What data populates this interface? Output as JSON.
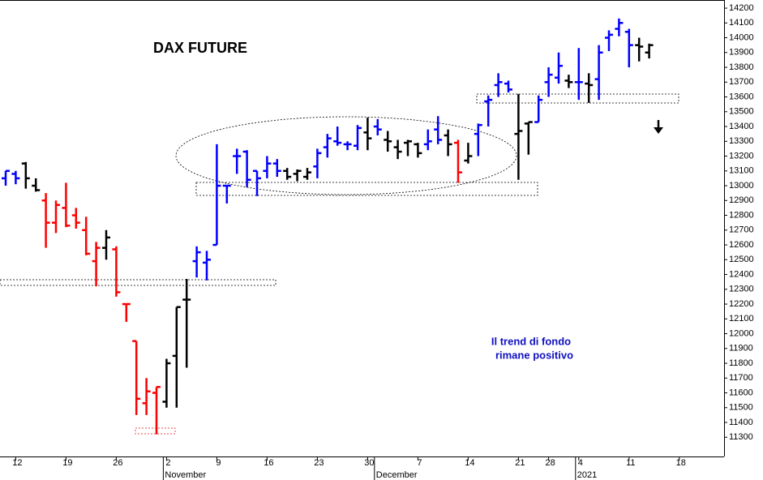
{
  "chart_data": {
    "type": "ohlc",
    "title": "DAX FUTURE",
    "annotations": [
      "Il trend di fondo",
      "rimane positivo"
    ],
    "categories": [
      null,
      "12",
      null,
      null,
      null,
      null,
      "19",
      null,
      null,
      null,
      null,
      "26",
      null,
      null,
      null,
      null,
      "2",
      null,
      null,
      null,
      null,
      "9",
      null,
      null,
      null,
      null,
      "16",
      null,
      null,
      null,
      null,
      "23",
      null,
      null,
      null,
      null,
      "30",
      null,
      null,
      null,
      null,
      "7",
      null,
      null,
      null,
      null,
      "14",
      null,
      null,
      null,
      null,
      "21",
      null,
      null,
      "28",
      null,
      null,
      "4",
      null,
      null,
      null,
      null,
      "11",
      null,
      null,
      null,
      null,
      "18"
    ],
    "months": [
      {
        "label": "November",
        "start": 16
      },
      {
        "label": "December",
        "start": 37
      },
      {
        "label": "2021",
        "start": 57
      }
    ],
    "open": [
      13050,
      13080,
      13150,
      13000,
      12900,
      12750,
      12850,
      12800,
      12700,
      12490,
      12580,
      12570,
      12200,
      11950,
      11530,
      11600,
      11540,
      11850,
      12230,
      12490,
      12480,
      12600,
      13000,
      13200,
      13230,
      13100,
      13100,
      13150,
      13100,
      13080,
      13060,
      13130,
      13260,
      13300,
      13280,
      13270,
      13360,
      13400,
      13310,
      13260,
      13290,
      13280,
      13280,
      13380,
      13340,
      13290,
      13170,
      13350,
      13570,
      13680,
      13690,
      13350,
      13420,
      13430,
      13700,
      13730,
      13710,
      13700,
      13690,
      13720,
      14000,
      14060,
      14040,
      13950,
      13900,
      null,
      null,
      null
    ],
    "high": [
      13100,
      13100,
      13160,
      13050,
      12950,
      12900,
      13020,
      12850,
      12790,
      12620,
      12700,
      12590,
      12200,
      11950,
      11700,
      11640,
      11830,
      12180,
      12370,
      12590,
      12560,
      13280,
      13000,
      13250,
      13240,
      13100,
      13200,
      13180,
      13120,
      13110,
      13120,
      13250,
      13350,
      13400,
      13300,
      13410,
      13460,
      13450,
      13370,
      13310,
      13310,
      13290,
      13380,
      13470,
      13380,
      13310,
      13290,
      13420,
      13610,
      13760,
      13710,
      13620,
      13430,
      13610,
      13800,
      13900,
      13750,
      13930,
      13760,
      13950,
      14050,
      14130,
      14060,
      14000,
      13960,
      null,
      null,
      null
    ],
    "low": [
      13000,
      13010,
      12980,
      12960,
      12580,
      12680,
      12720,
      12710,
      12530,
      12320,
      12500,
      12250,
      12080,
      11450,
      11450,
      11320,
      11500,
      11500,
      11770,
      12380,
      12360,
      12600,
      12880,
      13080,
      12990,
      12930,
      13050,
      13060,
      13040,
      13030,
      13040,
      13050,
      13190,
      13270,
      13240,
      13240,
      13240,
      13340,
      13230,
      13180,
      13200,
      13190,
      13240,
      13280,
      13200,
      13020,
      13150,
      13200,
      13400,
      13600,
      13630,
      13040,
      13210,
      13430,
      13600,
      13690,
      13660,
      13580,
      13560,
      13580,
      13910,
      14010,
      13800,
      13840,
      13860,
      null,
      null,
      null
    ],
    "close": [
      13100,
      13050,
      13050,
      12970,
      12750,
      12870,
      12730,
      12750,
      12540,
      12580,
      12650,
      12280,
      12200,
      11560,
      11610,
      11640,
      11800,
      12180,
      12230,
      12550,
      12500,
      13000,
      13000,
      13200,
      13040,
      13050,
      13150,
      13100,
      13060,
      13100,
      13090,
      13220,
      13320,
      13290,
      13280,
      13390,
      13320,
      13380,
      13300,
      13230,
      13300,
      13220,
      13300,
      13310,
      13280,
      13090,
      13200,
      13410,
      13580,
      13700,
      13650,
      13370,
      13430,
      13580,
      13750,
      13810,
      13700,
      13700,
      13680,
      13900,
      14020,
      14100,
      13950,
      13940,
      13950,
      null,
      null,
      null
    ],
    "bar_colors": [
      "blue",
      "blue",
      "black",
      "black",
      "red",
      "red",
      "red",
      "red",
      "red",
      "red",
      "black",
      "red",
      "red",
      "red",
      "red",
      "red",
      "black",
      "black",
      "black",
      "blue",
      "blue",
      "blue",
      "blue",
      "blue",
      "blue",
      "blue",
      "blue",
      "blue",
      "black",
      "black",
      "black",
      "blue",
      "blue",
      "blue",
      "blue",
      "blue",
      "black",
      "blue",
      "black",
      "black",
      "black",
      "black",
      "blue",
      "blue",
      "black",
      "red",
      "black",
      "blue",
      "blue",
      "blue",
      "blue",
      "black",
      "black",
      "blue",
      "blue",
      "blue",
      "black",
      "blue",
      "black",
      "blue",
      "blue",
      "blue",
      "blue",
      "black",
      "black",
      null,
      null,
      null
    ],
    "ylim": [
      11170,
      14255
    ],
    "yticks": [
      11300,
      11400,
      11500,
      11600,
      11700,
      11800,
      11900,
      12000,
      12100,
      12200,
      12300,
      12400,
      12500,
      12600,
      12700,
      12800,
      12900,
      13000,
      13100,
      13200,
      13300,
      13400,
      13500,
      13600,
      13700,
      13800,
      13900,
      14000,
      14100,
      14200
    ]
  }
}
